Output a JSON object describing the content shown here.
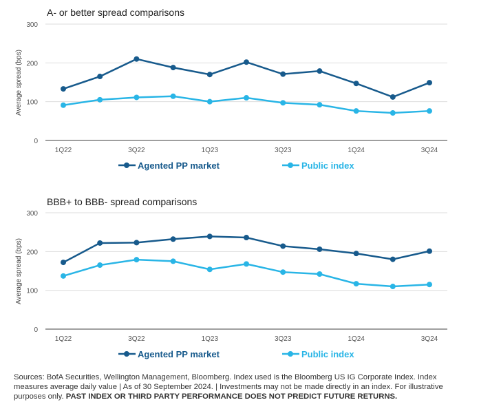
{
  "colors": {
    "agented": "#175a8c",
    "public": "#29b5e6"
  },
  "chart_data": [
    {
      "type": "line",
      "title": "A- or better spread comparisons",
      "ylabel": "Average spread (bps)",
      "ylim": [
        0,
        300
      ],
      "yticks": [
        "0",
        "100",
        "200",
        "300"
      ],
      "categories": [
        "1Q22",
        "2Q22",
        "3Q22",
        "4Q22",
        "1Q23",
        "2Q23",
        "3Q23",
        "4Q23",
        "1Q24",
        "2Q24",
        "3Q24"
      ],
      "x_tick_labels": [
        "1Q22",
        "3Q22",
        "1Q23",
        "3Q23",
        "1Q24",
        "3Q24"
      ],
      "series": [
        {
          "name": "Agented PP market",
          "values": [
            133,
            165,
            210,
            188,
            170,
            202,
            171,
            179,
            147,
            112,
            149
          ]
        },
        {
          "name": "Public index",
          "values": [
            91,
            105,
            111,
            114,
            100,
            110,
            97,
            92,
            76,
            71,
            76
          ]
        }
      ],
      "legend": "bottom",
      "grid": true
    },
    {
      "type": "line",
      "title": "BBB+ to BBB- spread comparisons",
      "ylabel": "Average spread (bps)",
      "ylim": [
        0,
        300
      ],
      "yticks": [
        "0",
        "100",
        "200",
        "300"
      ],
      "categories": [
        "1Q22",
        "2Q22",
        "3Q22",
        "4Q22",
        "1Q23",
        "2Q23",
        "3Q23",
        "4Q23",
        "1Q24",
        "2Q24",
        "3Q24"
      ],
      "x_tick_labels": [
        "1Q22",
        "3Q22",
        "1Q23",
        "3Q23",
        "1Q24",
        "3Q24"
      ],
      "series": [
        {
          "name": "Agented PP market",
          "values": [
            172,
            222,
            223,
            232,
            239,
            236,
            214,
            206,
            195,
            180,
            201
          ]
        },
        {
          "name": "Public index",
          "values": [
            137,
            165,
            179,
            175,
            154,
            168,
            147,
            142,
            117,
            110,
            115
          ]
        }
      ],
      "legend": "bottom",
      "grid": true
    }
  ],
  "footer": {
    "text": "Sources: BofA Securities, Wellington Management, Bloomberg. Index used is the Bloomberg US IG Corporate Index. Index measures average daily value  |  As of 30 September 2024.  |  Investments may not be made directly in an index. For illustrative purposes only. ",
    "bold": "PAST INDEX OR THIRD PARTY PERFORMANCE DOES NOT PREDICT FUTURE RETURNS."
  }
}
